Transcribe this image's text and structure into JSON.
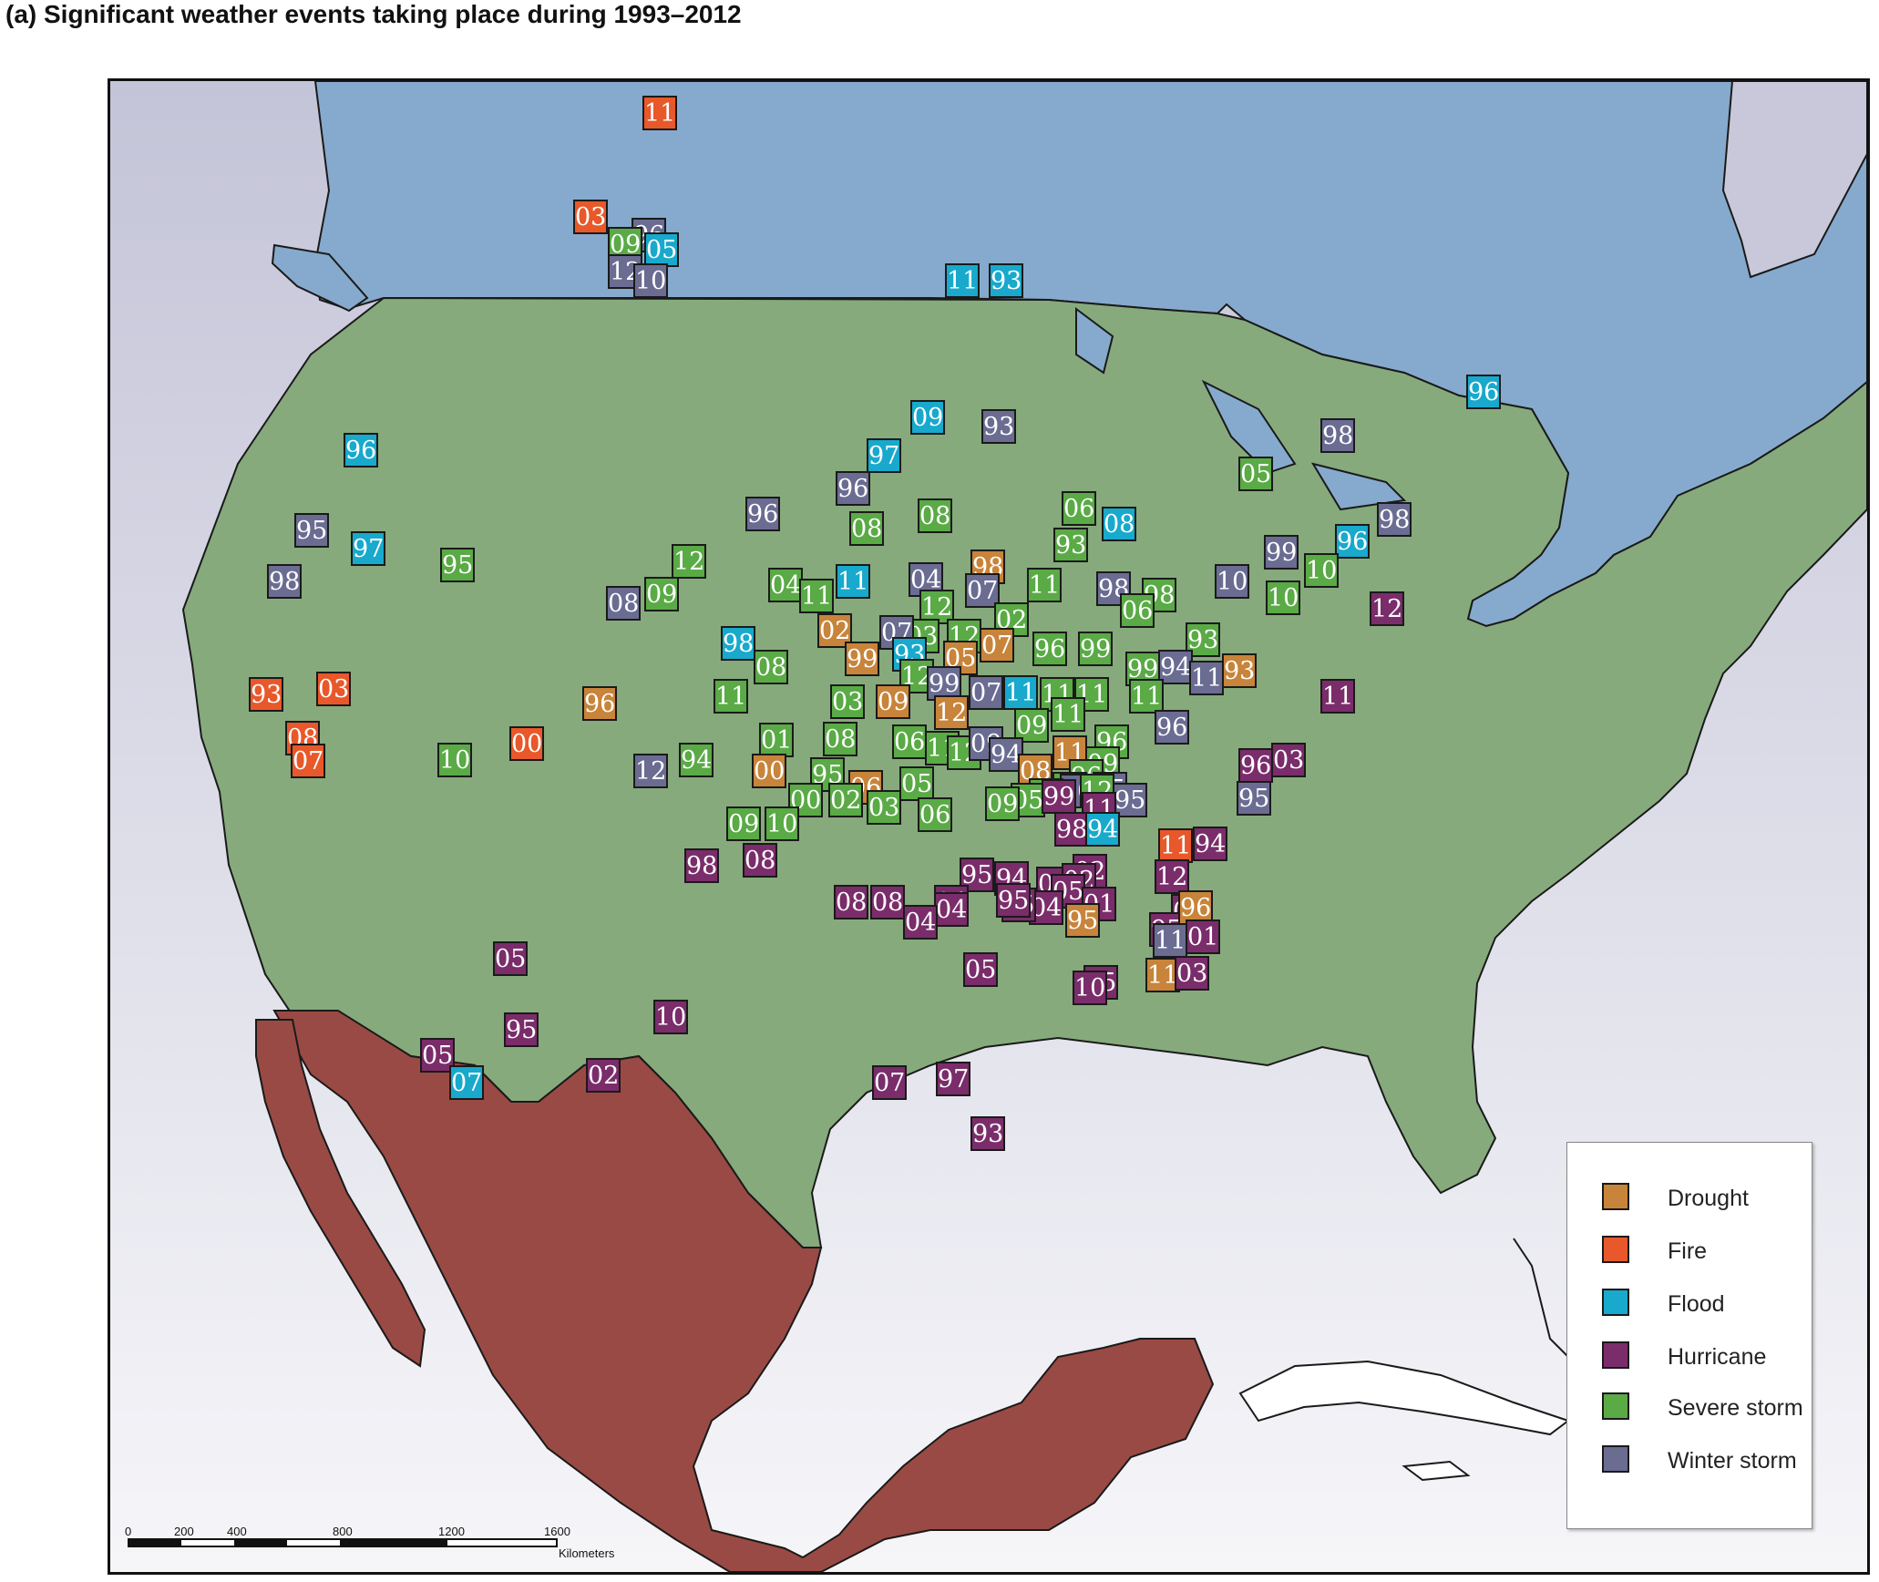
{
  "title": "(a) Significant weather events taking place during 1993–2012",
  "legend": [
    {
      "key": "drought",
      "label": "Drought",
      "color": "#c8843a"
    },
    {
      "key": "fire",
      "label": "Fire",
      "color": "#e8582a"
    },
    {
      "key": "flood",
      "label": "Flood",
      "color": "#18a9cc"
    },
    {
      "key": "hurricane",
      "label": "Hurricane",
      "color": "#7a2d6a"
    },
    {
      "key": "severe_storm",
      "label": "Severe storm",
      "color": "#5aaa46"
    },
    {
      "key": "winter_storm",
      "label": "Winter storm",
      "color": "#6a6c92"
    }
  ],
  "regions": {
    "canada": {
      "color": "#86aacd"
    },
    "usa": {
      "color": "#86aa7c"
    },
    "mexico": {
      "color": "#9a4a44"
    }
  },
  "scale_bar": {
    "ticks": [
      "0",
      "200",
      "400",
      "800",
      "1200",
      "1600"
    ],
    "unit": "Kilometers"
  },
  "markers": [
    {
      "type": "fire",
      "label": "11"
    },
    {
      "type": "fire",
      "label": "03"
    },
    {
      "type": "winter_storm",
      "label": "96"
    },
    {
      "type": "severe_storm",
      "label": "09"
    },
    {
      "type": "flood",
      "label": "05"
    },
    {
      "type": "winter_storm",
      "label": "12"
    },
    {
      "type": "winter_storm",
      "label": "10"
    },
    {
      "type": "flood",
      "label": "11"
    },
    {
      "type": "flood",
      "label": "93"
    },
    {
      "type": "flood",
      "label": "96"
    },
    {
      "type": "flood",
      "label": "09"
    },
    {
      "type": "winter_storm",
      "label": "93"
    },
    {
      "type": "winter_storm",
      "label": "98"
    },
    {
      "type": "flood",
      "label": "97"
    },
    {
      "type": "severe_storm",
      "label": "05"
    },
    {
      "type": "winter_storm",
      "label": "96"
    },
    {
      "type": "flood",
      "label": "96"
    },
    {
      "type": "winter_storm",
      "label": "96"
    },
    {
      "type": "severe_storm",
      "label": "08"
    },
    {
      "type": "severe_storm",
      "label": "08"
    },
    {
      "type": "severe_storm",
      "label": "06"
    },
    {
      "type": "flood",
      "label": "08"
    },
    {
      "type": "winter_storm",
      "label": "95"
    },
    {
      "type": "flood",
      "label": "97"
    },
    {
      "type": "severe_storm",
      "label": "95"
    },
    {
      "type": "severe_storm",
      "label": "93"
    },
    {
      "type": "winter_storm",
      "label": "98"
    },
    {
      "type": "severe_storm",
      "label": "12"
    },
    {
      "type": "drought",
      "label": "98"
    },
    {
      "type": "winter_storm",
      "label": "99"
    },
    {
      "type": "winter_storm",
      "label": "98"
    },
    {
      "type": "flood",
      "label": "96"
    },
    {
      "type": "severe_storm",
      "label": "10"
    },
    {
      "type": "severe_storm",
      "label": "04"
    },
    {
      "type": "flood",
      "label": "11"
    },
    {
      "type": "winter_storm",
      "label": "04"
    },
    {
      "type": "severe_storm",
      "label": "11"
    },
    {
      "type": "winter_storm",
      "label": "07"
    },
    {
      "type": "winter_storm",
      "label": "98"
    },
    {
      "type": "winter_storm",
      "label": "10"
    },
    {
      "type": "winter_storm",
      "label": "08"
    },
    {
      "type": "severe_storm",
      "label": "09"
    },
    {
      "type": "severe_storm",
      "label": "11"
    },
    {
      "type": "severe_storm",
      "label": "12"
    },
    {
      "type": "severe_storm",
      "label": "98"
    },
    {
      "type": "severe_storm",
      "label": "10"
    },
    {
      "type": "hurricane",
      "label": "12"
    },
    {
      "type": "severe_storm",
      "label": "06"
    },
    {
      "type": "drought",
      "label": "02"
    },
    {
      "type": "severe_storm",
      "label": "02"
    },
    {
      "type": "severe_storm",
      "label": "03"
    },
    {
      "type": "severe_storm",
      "label": "12"
    },
    {
      "type": "severe_storm",
      "label": "93"
    },
    {
      "type": "flood",
      "label": "98"
    },
    {
      "type": "winter_storm",
      "label": "07"
    },
    {
      "type": "severe_storm",
      "label": "08"
    },
    {
      "type": "drought",
      "label": "99"
    },
    {
      "type": "flood",
      "label": "93"
    },
    {
      "type": "drought",
      "label": "05"
    },
    {
      "type": "drought",
      "label": "07"
    },
    {
      "type": "severe_storm",
      "label": "96"
    },
    {
      "type": "severe_storm",
      "label": "99"
    },
    {
      "type": "severe_storm",
      "label": "99"
    },
    {
      "type": "winter_storm",
      "label": "94"
    },
    {
      "type": "drought",
      "label": "93"
    },
    {
      "type": "fire",
      "label": "93"
    },
    {
      "type": "fire",
      "label": "03"
    },
    {
      "type": "severe_storm",
      "label": "12"
    },
    {
      "type": "winter_storm",
      "label": "11"
    },
    {
      "type": "drought",
      "label": "96"
    },
    {
      "type": "severe_storm",
      "label": "11"
    },
    {
      "type": "winter_storm",
      "label": "99"
    },
    {
      "type": "winter_storm",
      "label": "07"
    },
    {
      "type": "flood",
      "label": "11"
    },
    {
      "type": "severe_storm",
      "label": "11"
    },
    {
      "type": "severe_storm",
      "label": "11"
    },
    {
      "type": "severe_storm",
      "label": "11"
    },
    {
      "type": "hurricane",
      "label": "11"
    },
    {
      "type": "severe_storm",
      "label": "03"
    },
    {
      "type": "drought",
      "label": "09"
    },
    {
      "type": "drought",
      "label": "12"
    },
    {
      "type": "severe_storm",
      "label": "11"
    },
    {
      "type": "winter_storm",
      "label": "96"
    },
    {
      "type": "fire",
      "label": "08"
    },
    {
      "type": "fire",
      "label": "00"
    },
    {
      "type": "severe_storm",
      "label": "01"
    },
    {
      "type": "severe_storm",
      "label": "08"
    },
    {
      "type": "severe_storm",
      "label": "06"
    },
    {
      "type": "severe_storm",
      "label": "09"
    },
    {
      "type": "fire",
      "label": "07"
    },
    {
      "type": "severe_storm",
      "label": "10"
    },
    {
      "type": "severe_storm",
      "label": "94"
    },
    {
      "type": "winter_storm",
      "label": "12"
    },
    {
      "type": "drought",
      "label": "00"
    },
    {
      "type": "severe_storm",
      "label": "95"
    },
    {
      "type": "severe_storm",
      "label": "11"
    },
    {
      "type": "severe_storm",
      "label": "12"
    },
    {
      "type": "winter_storm",
      "label": "09"
    },
    {
      "type": "winter_storm",
      "label": "94"
    },
    {
      "type": "drought",
      "label": "11"
    },
    {
      "type": "severe_storm",
      "label": "96"
    },
    {
      "type": "severe_storm",
      "label": "09"
    },
    {
      "type": "hurricane",
      "label": "96"
    },
    {
      "type": "hurricane",
      "label": "03"
    },
    {
      "type": "severe_storm",
      "label": "96"
    },
    {
      "type": "drought",
      "label": "08"
    },
    {
      "type": "severe_storm",
      "label": "12"
    },
    {
      "type": "severe_storm",
      "label": "05"
    },
    {
      "type": "drought",
      "label": "06"
    },
    {
      "type": "severe_storm",
      "label": "02"
    },
    {
      "type": "severe_storm",
      "label": "00"
    },
    {
      "type": "winter_storm",
      "label": "00"
    },
    {
      "type": "winter_storm",
      "label": "95"
    },
    {
      "type": "severe_storm",
      "label": "00"
    },
    {
      "type": "severe_storm",
      "label": "05"
    },
    {
      "type": "hurricane",
      "label": "99"
    },
    {
      "type": "severe_storm",
      "label": "12"
    },
    {
      "type": "winter_storm",
      "label": "95"
    },
    {
      "type": "winter_storm",
      "label": "95"
    },
    {
      "type": "severe_storm",
      "label": "09"
    },
    {
      "type": "severe_storm",
      "label": "09"
    },
    {
      "type": "severe_storm",
      "label": "10"
    },
    {
      "type": "severe_storm",
      "label": "03"
    },
    {
      "type": "severe_storm",
      "label": "06"
    },
    {
      "type": "hurricane",
      "label": "11"
    },
    {
      "type": "hurricane",
      "label": "98"
    },
    {
      "type": "flood",
      "label": "94"
    },
    {
      "type": "fire",
      "label": "11"
    },
    {
      "type": "hurricane",
      "label": "94"
    },
    {
      "type": "hurricane",
      "label": "08"
    },
    {
      "type": "hurricane",
      "label": "98"
    },
    {
      "type": "hurricane",
      "label": "02"
    },
    {
      "type": "hurricane",
      "label": "95"
    },
    {
      "type": "hurricane",
      "label": "94"
    },
    {
      "type": "hurricane",
      "label": "05"
    },
    {
      "type": "hurricane",
      "label": "02"
    },
    {
      "type": "hurricane",
      "label": "05"
    },
    {
      "type": "hurricane",
      "label": "04"
    },
    {
      "type": "hurricane",
      "label": "01"
    },
    {
      "type": "hurricane",
      "label": "12"
    },
    {
      "type": "hurricane",
      "label": "05"
    },
    {
      "type": "hurricane",
      "label": "95"
    },
    {
      "type": "hurricane",
      "label": "08"
    },
    {
      "type": "hurricane",
      "label": "08"
    },
    {
      "type": "hurricane",
      "label": "04"
    },
    {
      "type": "drought",
      "label": "95"
    },
    {
      "type": "hurricane",
      "label": "04"
    },
    {
      "type": "hurricane",
      "label": "04"
    },
    {
      "type": "hurricane",
      "label": "05"
    },
    {
      "type": "drought",
      "label": "96"
    },
    {
      "type": "winter_storm",
      "label": "11"
    },
    {
      "type": "hurricane",
      "label": "01"
    },
    {
      "type": "drought",
      "label": "11"
    },
    {
      "type": "hurricane",
      "label": "03"
    },
    {
      "type": "hurricane",
      "label": "95"
    },
    {
      "type": "hurricane",
      "label": "95"
    },
    {
      "type": "hurricane",
      "label": "05"
    },
    {
      "type": "hurricane",
      "label": "05"
    },
    {
      "type": "hurricane",
      "label": "10"
    },
    {
      "type": "hurricane",
      "label": "10"
    },
    {
      "type": "hurricane",
      "label": "95"
    },
    {
      "type": "hurricane",
      "label": "05"
    },
    {
      "type": "hurricane",
      "label": "02"
    },
    {
      "type": "flood",
      "label": "07"
    },
    {
      "type": "hurricane",
      "label": "07"
    },
    {
      "type": "hurricane",
      "label": "97"
    },
    {
      "type": "hurricane",
      "label": "93"
    }
  ]
}
